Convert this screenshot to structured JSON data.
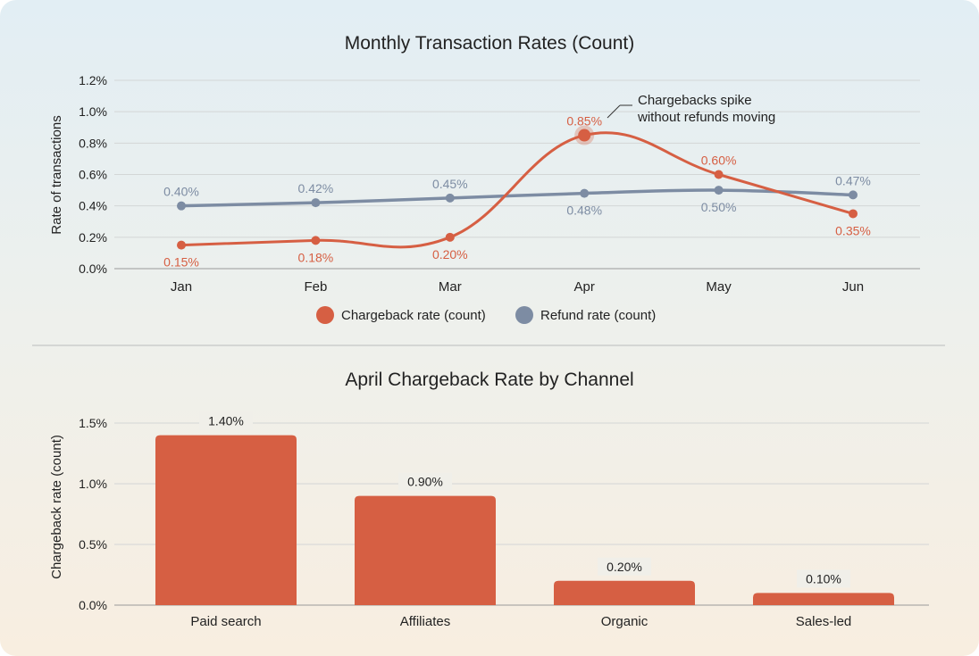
{
  "chart_data": [
    {
      "type": "line",
      "title": "Monthly Transaction Rates (Count)",
      "xlabel": "",
      "ylabel": "Rate of transactions",
      "categories": [
        "Jan",
        "Feb",
        "Mar",
        "Apr",
        "May",
        "Jun"
      ],
      "ylim": [
        0,
        1.2
      ],
      "yticks": [
        "0.0%",
        "0.2%",
        "0.4%",
        "0.6%",
        "0.8%",
        "1.0%",
        "1.2%"
      ],
      "grid": true,
      "legend_position": "bottom",
      "series": [
        {
          "name": "Chargeback rate (count)",
          "color": "#d65f43",
          "values": [
            0.15,
            0.18,
            0.2,
            0.85,
            0.6,
            0.35
          ],
          "labels": [
            "0.15%",
            "0.18%",
            "0.20%",
            "0.85%",
            "0.60%",
            "0.35%"
          ]
        },
        {
          "name": "Refund rate (count)",
          "color": "#7d8ca3",
          "values": [
            0.4,
            0.42,
            0.45,
            0.48,
            0.5,
            0.47
          ],
          "labels": [
            "0.40%",
            "0.42%",
            "0.45%",
            "0.48%",
            "0.50%",
            "0.47%"
          ]
        }
      ],
      "annotation": {
        "text_line1": "Chargebacks spike",
        "text_line2": "without refunds moving",
        "target": "Apr"
      }
    },
    {
      "type": "bar",
      "title": "April Chargeback Rate by Channel",
      "xlabel": "",
      "ylabel": "Chargeback rate (count)",
      "categories": [
        "Paid search",
        "Affiliates",
        "Organic",
        "Sales-led"
      ],
      "values": [
        1.4,
        0.9,
        0.2,
        0.1
      ],
      "labels": [
        "1.40%",
        "0.90%",
        "0.20%",
        "0.10%"
      ],
      "ylim": [
        0,
        1.5
      ],
      "yticks": [
        "0.0%",
        "0.5%",
        "1.0%",
        "1.5%"
      ],
      "grid": true,
      "color": "#d65f43"
    }
  ]
}
